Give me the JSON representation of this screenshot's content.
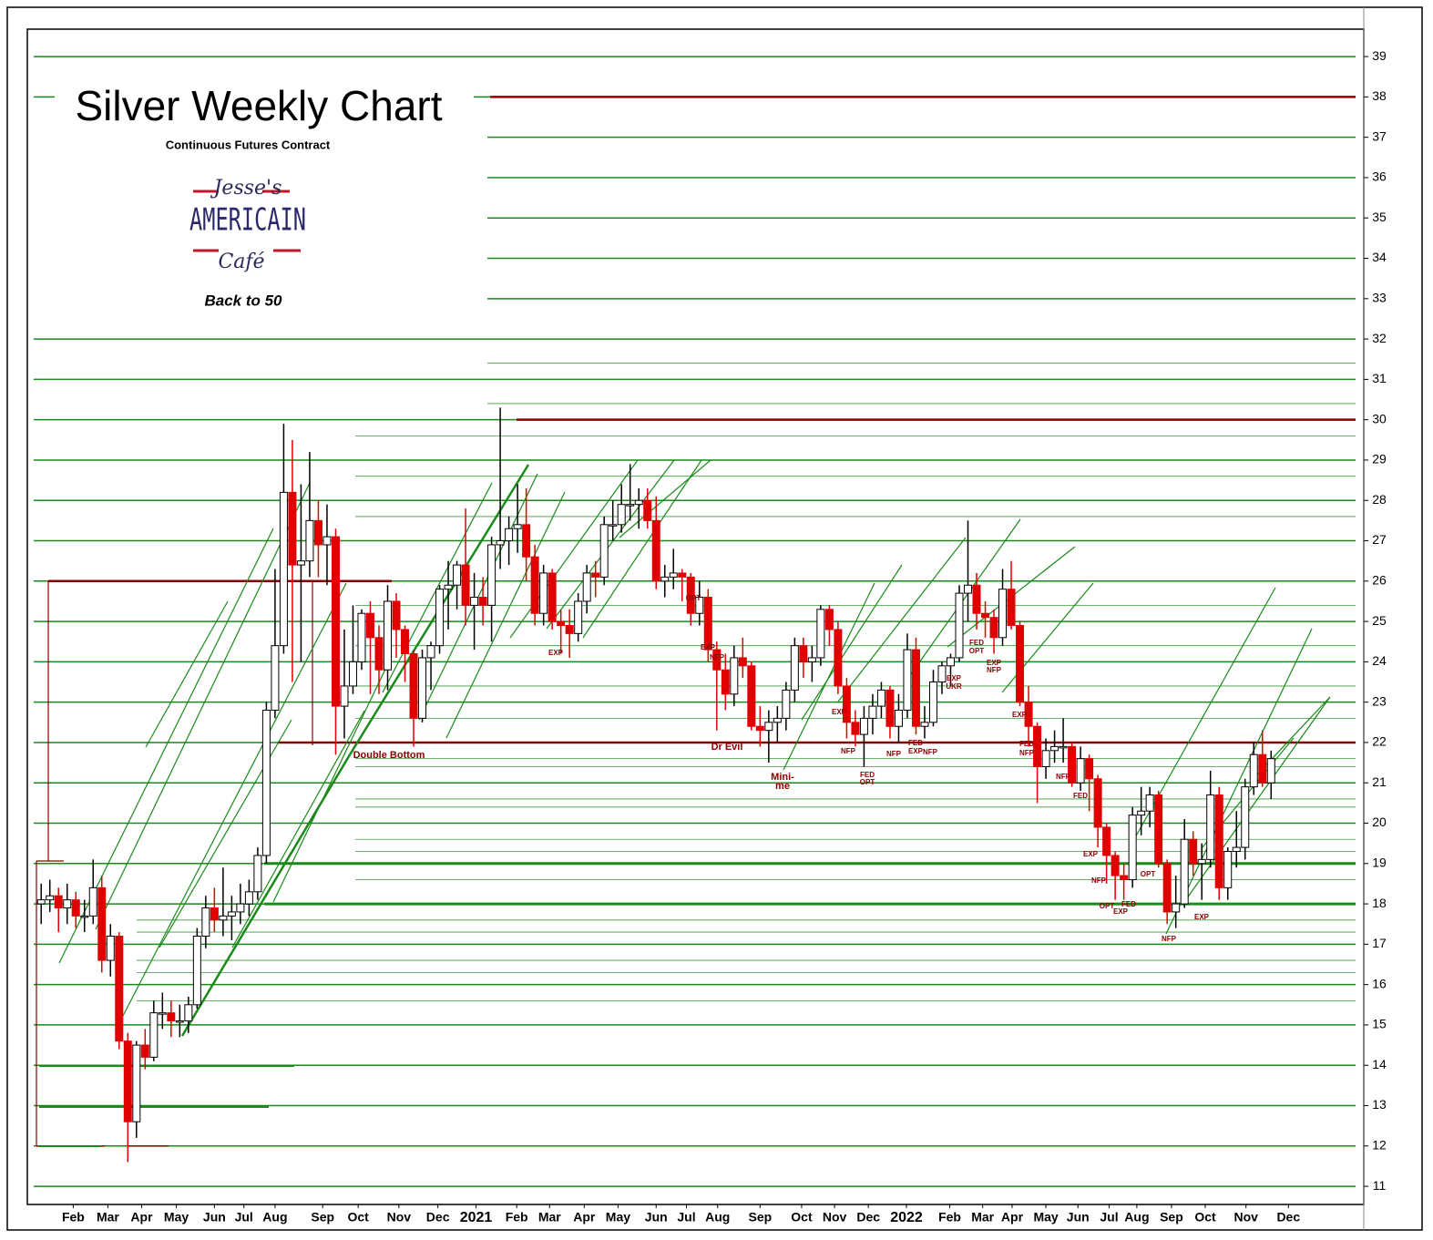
{
  "chart_data": {
    "type": "candlestick",
    "title": "Silver Weekly Chart",
    "subtitle": "Continuous Futures Contract",
    "logo": {
      "top": "Jesse's",
      "middle": "AMERICAIN",
      "bottom": "Café"
    },
    "tagline": "Back to 50",
    "up_color": "#ffffff",
    "down_color": "#e00000",
    "grid_color": "#1a8a1a",
    "level_color": "#8b0000",
    "ylim": [
      10.55,
      39.68
    ],
    "yticks": [
      11,
      12,
      13,
      14,
      15,
      16,
      17,
      18,
      19,
      20,
      21,
      22,
      23,
      24,
      25,
      26,
      27,
      28,
      29,
      30,
      31,
      32,
      33,
      34,
      35,
      36,
      37,
      38,
      39
    ],
    "grid": true,
    "resistance_levels": [
      38,
      30,
      26,
      22
    ],
    "support_levels": [
      19,
      18
    ],
    "xlim": [
      -1.6,
      152.7
    ],
    "xticks": [
      {
        "value": 3.7,
        "label": "Feb"
      },
      {
        "value": 7.7,
        "label": "Mar"
      },
      {
        "value": 11.6,
        "label": "Apr"
      },
      {
        "value": 15.6,
        "label": "May"
      },
      {
        "value": 20.0,
        "label": "Jun"
      },
      {
        "value": 23.4,
        "label": "Jul"
      },
      {
        "value": 27.0,
        "label": "Aug"
      },
      {
        "value": 32.5,
        "label": "Sep"
      },
      {
        "value": 36.6,
        "label": "Oct"
      },
      {
        "value": 41.3,
        "label": "Nov"
      },
      {
        "value": 45.8,
        "label": "Dec"
      },
      {
        "value": 50.2,
        "label": "2021"
      },
      {
        "value": 54.9,
        "label": "Feb"
      },
      {
        "value": 58.7,
        "label": "Mar"
      },
      {
        "value": 62.7,
        "label": "Apr"
      },
      {
        "value": 66.6,
        "label": "May"
      },
      {
        "value": 71.0,
        "label": "Jun"
      },
      {
        "value": 74.5,
        "label": "Jul"
      },
      {
        "value": 78.1,
        "label": "Aug"
      },
      {
        "value": 83.0,
        "label": "Sep"
      },
      {
        "value": 87.8,
        "label": "Oct"
      },
      {
        "value": 91.6,
        "label": "Nov"
      },
      {
        "value": 95.5,
        "label": "Dec"
      },
      {
        "value": 99.9,
        "label": "2022"
      },
      {
        "value": 104.9,
        "label": "Feb"
      },
      {
        "value": 108.7,
        "label": "Mar"
      },
      {
        "value": 112.1,
        "label": "Apr"
      },
      {
        "value": 116.0,
        "label": "May"
      },
      {
        "value": 119.7,
        "label": "Jun"
      },
      {
        "value": 123.3,
        "label": "Jul"
      },
      {
        "value": 126.5,
        "label": "Aug"
      },
      {
        "value": 130.5,
        "label": "Sep"
      },
      {
        "value": 134.4,
        "label": "Oct"
      },
      {
        "value": 139.1,
        "label": "Nov"
      },
      {
        "value": 144.0,
        "label": "Dec"
      }
    ],
    "ohlc": [
      [
        18.0,
        18.5,
        17.5,
        18.1
      ],
      [
        18.1,
        18.6,
        17.8,
        18.2
      ],
      [
        18.2,
        18.4,
        17.3,
        17.9
      ],
      [
        17.9,
        18.5,
        17.5,
        18.1
      ],
      [
        18.1,
        18.3,
        17.4,
        17.7
      ],
      [
        17.7,
        18.1,
        17.3,
        17.7
      ],
      [
        17.7,
        19.1,
        17.5,
        18.4
      ],
      [
        18.4,
        18.7,
        16.3,
        16.6
      ],
      [
        16.6,
        17.5,
        16.2,
        17.2
      ],
      [
        17.2,
        17.3,
        14.4,
        14.6
      ],
      [
        14.6,
        14.8,
        11.6,
        12.6
      ],
      [
        12.6,
        14.6,
        12.2,
        14.5
      ],
      [
        14.5,
        14.9,
        13.9,
        14.2
      ],
      [
        14.2,
        15.6,
        14.1,
        15.3
      ],
      [
        15.3,
        15.8,
        14.9,
        15.3
      ],
      [
        15.3,
        15.6,
        14.7,
        15.1
      ],
      [
        15.1,
        15.5,
        14.7,
        15.1
      ],
      [
        15.1,
        15.7,
        14.8,
        15.5
      ],
      [
        15.5,
        17.4,
        15.4,
        17.2
      ],
      [
        17.2,
        18.2,
        16.9,
        17.9
      ],
      [
        17.9,
        18.4,
        17.3,
        17.6
      ],
      [
        17.6,
        18.9,
        17.2,
        17.7
      ],
      [
        17.7,
        18.2,
        17.1,
        17.8
      ],
      [
        17.8,
        18.5,
        17.5,
        18.0
      ],
      [
        18.0,
        18.6,
        17.7,
        18.3
      ],
      [
        18.3,
        19.4,
        18.1,
        19.2
      ],
      [
        19.2,
        23.0,
        19.0,
        22.8
      ],
      [
        22.8,
        26.3,
        22.6,
        24.4
      ],
      [
        24.4,
        29.9,
        24.2,
        28.2
      ],
      [
        28.2,
        29.5,
        23.5,
        26.4
      ],
      [
        26.4,
        28.4,
        24.0,
        26.5
      ],
      [
        26.5,
        29.2,
        26.1,
        27.5
      ],
      [
        27.5,
        28.0,
        26.1,
        26.9
      ],
      [
        26.9,
        27.9,
        25.9,
        27.1
      ],
      [
        27.1,
        27.3,
        21.7,
        22.9
      ],
      [
        22.9,
        24.8,
        22.1,
        23.4
      ],
      [
        23.4,
        25.4,
        23.2,
        24.0
      ],
      [
        24.0,
        25.3,
        23.8,
        25.2
      ],
      [
        25.2,
        25.5,
        23.2,
        24.6
      ],
      [
        24.6,
        24.9,
        23.2,
        23.8
      ],
      [
        23.8,
        25.9,
        23.3,
        25.5
      ],
      [
        25.5,
        25.7,
        24.1,
        24.8
      ],
      [
        24.8,
        24.9,
        23.5,
        24.2
      ],
      [
        24.2,
        24.3,
        21.9,
        22.6
      ],
      [
        22.6,
        24.3,
        22.5,
        24.1
      ],
      [
        24.1,
        24.5,
        23.3,
        24.4
      ],
      [
        24.4,
        25.9,
        24.2,
        25.8
      ],
      [
        25.8,
        26.5,
        24.8,
        25.9
      ],
      [
        25.9,
        26.5,
        25.3,
        26.4
      ],
      [
        26.4,
        27.8,
        24.9,
        25.4
      ],
      [
        25.4,
        26.2,
        24.3,
        25.6
      ],
      [
        25.6,
        26.1,
        24.9,
        25.4
      ],
      [
        25.4,
        27.1,
        24.5,
        26.9
      ],
      [
        26.9,
        30.3,
        26.3,
        27.0
      ],
      [
        27.0,
        27.6,
        26.4,
        27.3
      ],
      [
        27.3,
        28.4,
        26.7,
        27.4
      ],
      [
        27.4,
        28.3,
        26.0,
        26.6
      ],
      [
        26.6,
        26.9,
        24.9,
        25.2
      ],
      [
        25.2,
        26.4,
        24.9,
        26.2
      ],
      [
        26.2,
        26.3,
        24.8,
        25.0
      ],
      [
        25.0,
        25.3,
        24.2,
        24.9
      ],
      [
        24.9,
        25.3,
        24.1,
        24.7
      ],
      [
        24.7,
        25.7,
        24.5,
        25.5
      ],
      [
        25.5,
        26.4,
        25.2,
        26.2
      ],
      [
        26.2,
        26.5,
        25.6,
        26.1
      ],
      [
        26.1,
        27.6,
        25.9,
        27.4
      ],
      [
        27.4,
        28.0,
        27.0,
        27.4
      ],
      [
        27.4,
        28.4,
        27.2,
        27.9
      ],
      [
        27.9,
        28.9,
        27.5,
        27.9
      ],
      [
        27.9,
        28.3,
        27.3,
        28.0
      ],
      [
        28.0,
        28.3,
        27.3,
        27.5
      ],
      [
        27.5,
        28.1,
        25.8,
        26.0
      ],
      [
        26.0,
        26.4,
        25.6,
        26.1
      ],
      [
        26.1,
        26.8,
        25.8,
        26.2
      ],
      [
        26.2,
        26.3,
        25.5,
        26.1
      ],
      [
        26.1,
        26.2,
        24.9,
        25.2
      ],
      [
        25.2,
        26.0,
        24.9,
        25.6
      ],
      [
        25.6,
        25.8,
        24.0,
        24.3
      ],
      [
        24.3,
        24.5,
        22.3,
        23.8
      ],
      [
        23.8,
        24.2,
        22.8,
        23.2
      ],
      [
        23.2,
        24.4,
        22.9,
        24.1
      ],
      [
        24.1,
        24.6,
        23.6,
        23.9
      ],
      [
        23.9,
        24.0,
        22.3,
        22.4
      ],
      [
        22.4,
        22.9,
        21.9,
        22.3
      ],
      [
        22.3,
        22.8,
        21.5,
        22.5
      ],
      [
        22.5,
        22.9,
        22.0,
        22.6
      ],
      [
        22.6,
        23.5,
        22.3,
        23.3
      ],
      [
        23.3,
        24.6,
        23.0,
        24.4
      ],
      [
        24.4,
        24.6,
        23.6,
        24.0
      ],
      [
        24.0,
        24.4,
        23.5,
        24.1
      ],
      [
        24.1,
        25.4,
        23.9,
        25.3
      ],
      [
        25.3,
        25.4,
        24.4,
        24.8
      ],
      [
        24.8,
        25.0,
        23.2,
        23.4
      ],
      [
        23.4,
        23.6,
        22.1,
        22.5
      ],
      [
        22.5,
        22.8,
        21.9,
        22.2
      ],
      [
        22.2,
        22.9,
        21.4,
        22.6
      ],
      [
        22.6,
        23.2,
        22.2,
        22.9
      ],
      [
        22.9,
        23.5,
        22.6,
        23.3
      ],
      [
        23.3,
        23.4,
        22.1,
        22.4
      ],
      [
        22.4,
        23.2,
        22.0,
        22.8
      ],
      [
        22.8,
        24.7,
        22.6,
        24.3
      ],
      [
        24.3,
        24.6,
        22.2,
        22.4
      ],
      [
        22.4,
        22.9,
        22.1,
        22.5
      ],
      [
        22.5,
        23.8,
        22.4,
        23.5
      ],
      [
        23.5,
        24.0,
        23.2,
        23.9
      ],
      [
        23.9,
        24.2,
        23.4,
        24.1
      ],
      [
        24.1,
        25.9,
        24.0,
        25.7
      ],
      [
        25.7,
        27.5,
        25.0,
        25.9
      ],
      [
        25.9,
        26.2,
        24.8,
        25.2
      ],
      [
        25.2,
        25.5,
        24.6,
        25.1
      ],
      [
        25.1,
        25.3,
        24.2,
        24.6
      ],
      [
        24.6,
        26.3,
        24.4,
        25.8
      ],
      [
        25.8,
        26.5,
        24.8,
        24.9
      ],
      [
        24.9,
        25.0,
        22.9,
        23.0
      ],
      [
        23.0,
        23.4,
        21.9,
        22.4
      ],
      [
        22.4,
        22.5,
        20.5,
        21.4
      ],
      [
        21.4,
        22.1,
        21.1,
        21.8
      ],
      [
        21.8,
        22.3,
        21.5,
        21.9
      ],
      [
        21.9,
        22.6,
        21.5,
        21.9
      ],
      [
        21.9,
        22.0,
        20.9,
        21.0
      ],
      [
        21.0,
        21.9,
        20.8,
        21.6
      ],
      [
        21.6,
        21.7,
        20.3,
        21.1
      ],
      [
        21.1,
        21.2,
        19.4,
        19.9
      ],
      [
        19.9,
        20.0,
        18.5,
        19.2
      ],
      [
        19.2,
        19.3,
        18.1,
        18.7
      ],
      [
        18.7,
        19.0,
        18.1,
        18.6
      ],
      [
        18.6,
        20.4,
        18.4,
        20.2
      ],
      [
        20.2,
        20.9,
        19.7,
        20.3
      ],
      [
        20.3,
        20.9,
        19.9,
        20.7
      ],
      [
        20.7,
        20.8,
        18.9,
        19.0
      ],
      [
        19.0,
        19.1,
        17.5,
        17.8
      ],
      [
        17.8,
        18.7,
        17.4,
        18.0
      ],
      [
        18.0,
        20.1,
        17.9,
        19.6
      ],
      [
        19.6,
        19.8,
        18.7,
        19.0
      ],
      [
        19.0,
        19.5,
        18.1,
        19.1
      ],
      [
        19.1,
        21.3,
        18.9,
        20.7
      ],
      [
        20.7,
        20.9,
        18.1,
        18.4
      ],
      [
        18.4,
        19.4,
        18.1,
        19.3
      ],
      [
        19.3,
        20.3,
        18.9,
        19.4
      ],
      [
        19.4,
        21.1,
        19.1,
        20.9
      ],
      [
        20.9,
        22.0,
        20.7,
        21.7
      ],
      [
        21.7,
        22.3,
        20.9,
        21.0
      ],
      [
        21.0,
        21.8,
        20.6,
        21.6
      ]
    ],
    "annotations": [
      "Double Bottom",
      "Dr Evil",
      "Mini-",
      "me",
      "EXP",
      "OPT",
      "EXP",
      "NFP",
      "EXP",
      "NFP",
      "FED",
      "OPT",
      "NFP",
      "FED",
      "EXP",
      "NFP",
      "EXP",
      "UKR",
      "FED",
      "OPT",
      "EXP",
      "NFP",
      "EXP",
      "FED",
      "NFP",
      "NFP",
      "FED",
      "EXP",
      "NFP",
      "OPT",
      "EXP",
      "FED",
      "OPT",
      "NFP",
      "EXP"
    ]
  }
}
